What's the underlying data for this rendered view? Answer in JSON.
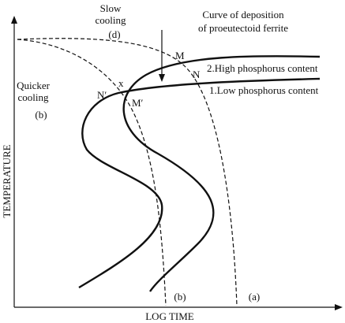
{
  "axes": {
    "y_label": "TEMPERATURE",
    "x_label": "LOG TIME"
  },
  "labels": {
    "slow_cooling": [
      "Slow",
      "cooling",
      "(d)"
    ],
    "quicker_cooling": [
      "Quicker",
      "cooling",
      "(b)"
    ],
    "deposition_curve": [
      "Curve of deposition",
      "of proeutectoid ferrite"
    ],
    "high_phosphorus": "2.High phosphorus content",
    "low_phosphorus": "1.Low phosphorus content",
    "points": {
      "M": "M",
      "N": "N",
      "N_prime": "N′",
      "x": "x",
      "M_prime": "M′"
    },
    "bottom_b": "(b)",
    "bottom_a": "(a)"
  }
}
